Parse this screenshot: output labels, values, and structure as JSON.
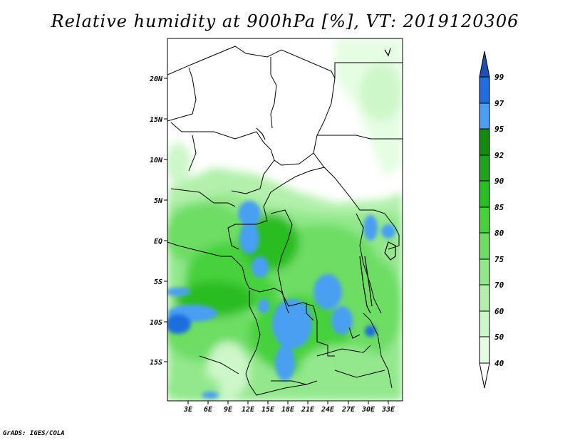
{
  "title": "Relative humidity at 900hPa [%], VT: 2019120306",
  "credit": "GrADS: IGES/COLA",
  "map": {
    "lat_labels": [
      "20N",
      "15N",
      "10N",
      "5N",
      "EQ",
      "5S",
      "10S",
      "15S"
    ],
    "lon_labels": [
      "3E",
      "6E",
      "9E",
      "12E",
      "15E",
      "18E",
      "21E",
      "24E",
      "27E",
      "30E",
      "33E"
    ]
  },
  "colorbar": {
    "labels": [
      "40",
      "50",
      "60",
      "70",
      "75",
      "80",
      "85",
      "90",
      "92",
      "95",
      "97",
      "99"
    ],
    "colors": [
      "#ffffff",
      "#e5fde3",
      "#cdf7c9",
      "#b2f0ac",
      "#93e88c",
      "#6ddd63",
      "#47d13c",
      "#2bbd24",
      "#1ea31a",
      "#148a13",
      "#4a9ff2",
      "#1f6de0",
      "#1a4fba"
    ]
  }
}
